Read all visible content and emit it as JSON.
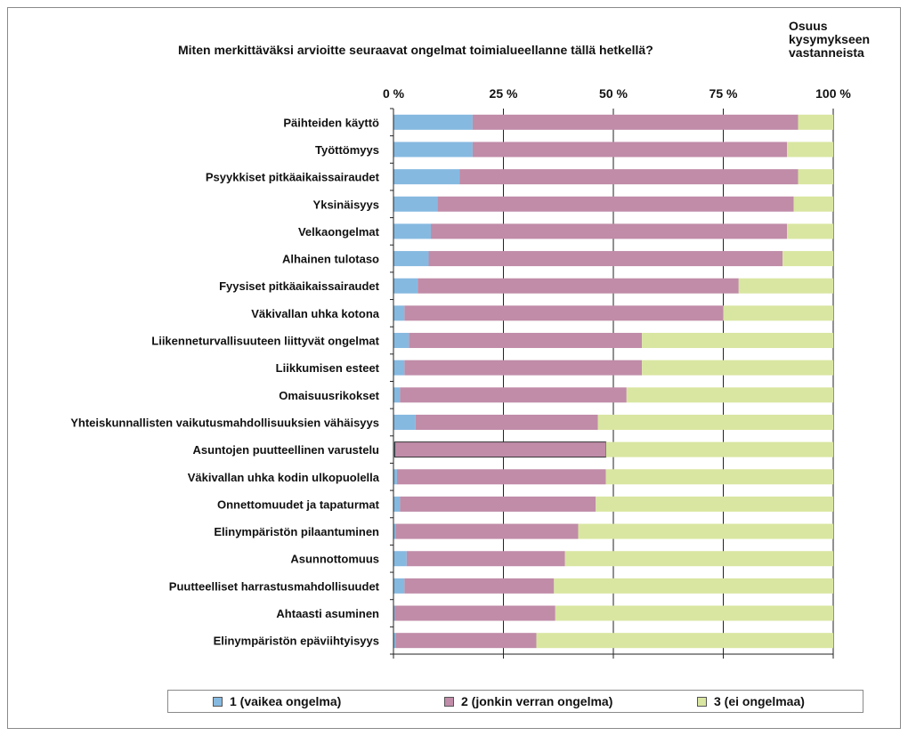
{
  "chart_data": {
    "type": "bar",
    "orientation": "horizontal",
    "stacked": true,
    "title": "Miten merkittäväksi arvioitte seuraavat ongelmat toimialueellanne tällä hetkellä?",
    "axis_title_lines": [
      "Osuus",
      "kysymykseen",
      "vastanneista"
    ],
    "x_tick_labels": [
      "0 %",
      "25 %",
      "50 %",
      "75 %",
      "100 %"
    ],
    "xlim": [
      0,
      100
    ],
    "grid": true,
    "legend_position": "bottom",
    "categories": [
      "Päihteiden käyttö",
      "Työttömyys",
      "Psyykkiset pitkäaikaissairaudet",
      "Yksinäisyys",
      "Velkaongelmat",
      "Alhainen tulotaso",
      "Fyysiset pitkäaikaissairaudet",
      "Väkivallan uhka kotona",
      "Liikenneturvallisuuteen liittyvät ongelmat",
      "Liikkumisen esteet",
      "Omaisuusrikokset",
      "Yhteiskunnallisten vaikutusmahdollisuuksien vähäisyys",
      "Asuntojen puutteellinen varustelu",
      "Väkivallan uhka kodin ulkopuolella",
      "Onnettomuudet ja tapaturmat",
      "Elinympäristön pilaantuminen",
      "Asunnottomuus",
      "Puutteelliset harrastusmahdollisuudet",
      "Ahtaasti asuminen",
      "Elinympäristön epäviihtyisyys"
    ],
    "series": [
      {
        "name": "1 (vaikea ongelma)",
        "color": "#86b9e0",
        "values": [
          18,
          18,
          15,
          10,
          8.5,
          8,
          5.5,
          2.5,
          3.5,
          2.5,
          1.5,
          5,
          0.3,
          0.8,
          1.5,
          0.5,
          3,
          2.5,
          0.3,
          0.5
        ]
      },
      {
        "name": "2 (jonkin verran ongelma)",
        "color": "#c08ca8",
        "values": [
          74,
          71.5,
          77,
          81,
          81,
          80.5,
          73,
          72.5,
          53,
          54,
          51.5,
          41.5,
          48,
          47.5,
          44.5,
          41.5,
          36,
          34,
          36.5,
          32
        ]
      },
      {
        "name": "3 (ei ongelmaa)",
        "color": "#d9e6a1",
        "values": [
          8,
          10.5,
          8,
          9,
          10.5,
          11.5,
          21.5,
          25,
          43.5,
          43.5,
          47,
          53.5,
          51.7,
          51.7,
          54,
          58,
          61,
          63.5,
          63.2,
          67.5
        ]
      }
    ]
  }
}
